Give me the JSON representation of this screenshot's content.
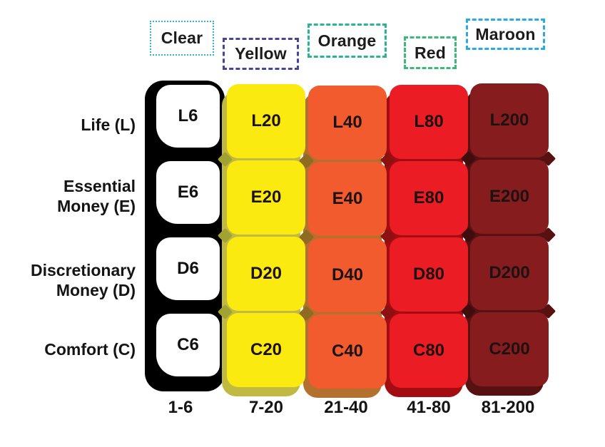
{
  "page": {
    "background": "#ffffff"
  },
  "header": {
    "boxes": [
      {
        "label": "Clear",
        "border_color": "#2bb7c4",
        "border_style": "dotted"
      },
      {
        "label": "Yellow",
        "border_color": "#44459b",
        "border_style": "dashed"
      },
      {
        "label": "Orange",
        "border_color": "#2ab591",
        "border_style": "dashed"
      },
      {
        "label": "Red",
        "border_color": "#3cb878",
        "border_style": "dashed"
      },
      {
        "label": "Maroon",
        "border_color": "#29abe2",
        "border_style": "dashed"
      }
    ]
  },
  "rows": [
    {
      "key": "L",
      "label": "Life (L)"
    },
    {
      "key": "E",
      "label": "Essential Money (E)"
    },
    {
      "key": "D",
      "label": "Discretionary Money (D)"
    },
    {
      "key": "C",
      "label": "Comfort (C)"
    }
  ],
  "columns": [
    {
      "name": "Clear",
      "range": "1-6",
      "fill": "#ffffff",
      "frame": "#000000",
      "shadow": "#000000",
      "diamond": null,
      "cells": [
        "L6",
        "E6",
        "D6",
        "C6"
      ]
    },
    {
      "name": "Yellow",
      "range": "7-20",
      "fill": "#fbea10",
      "frame": null,
      "shadow": "#c0ba42",
      "diamond": "#a2a233",
      "cells": [
        "L20",
        "E20",
        "D20",
        "C20"
      ]
    },
    {
      "name": "Orange",
      "range": "21-40",
      "fill": "#f15b2e",
      "frame": null,
      "shadow": "#b2712c",
      "diamond": "#8f6b22",
      "cells": [
        "L40",
        "E40",
        "D40",
        "C40"
      ]
    },
    {
      "name": "Red",
      "range": "41-80",
      "fill": "#ec1c24",
      "frame": null,
      "shadow": "#a30c10",
      "diamond": "#8e1111",
      "cells": [
        "L80",
        "E80",
        "D80",
        "C80"
      ]
    },
    {
      "name": "Maroon",
      "range": "81-200",
      "fill": "#871c1e",
      "frame": null,
      "shadow": "#581111",
      "diamond": "#3f0d0d",
      "cells": [
        "L200",
        "E200",
        "D200",
        "C200"
      ]
    }
  ]
}
